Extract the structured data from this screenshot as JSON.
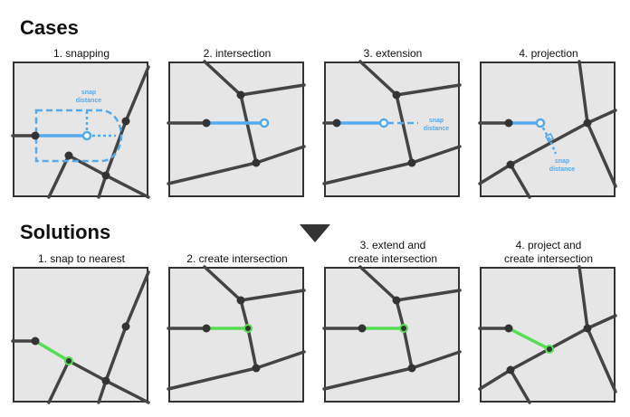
{
  "headings": {
    "cases": "Cases",
    "solutions": "Solutions"
  },
  "cases": [
    {
      "caption": "1. snapping",
      "annotation": [
        "snap",
        "distance"
      ]
    },
    {
      "caption": "2. intersection"
    },
    {
      "caption": "3. extension",
      "annotation": [
        "snap",
        "distance"
      ]
    },
    {
      "caption": "4. projection",
      "annotation": [
        "snap",
        "distance"
      ]
    }
  ],
  "solutions": [
    {
      "caption": "1. snap to nearest"
    },
    {
      "caption": "2. create intersection"
    },
    {
      "caption_lines": [
        "3. extend and",
        "create intersection"
      ]
    },
    {
      "caption_lines": [
        "4. project and",
        "create intersection"
      ]
    }
  ],
  "colors": {
    "road": "#444444",
    "active_line": "#55aaee",
    "resolved_line": "#55dd55",
    "panel_background": "#e6e6e6"
  }
}
